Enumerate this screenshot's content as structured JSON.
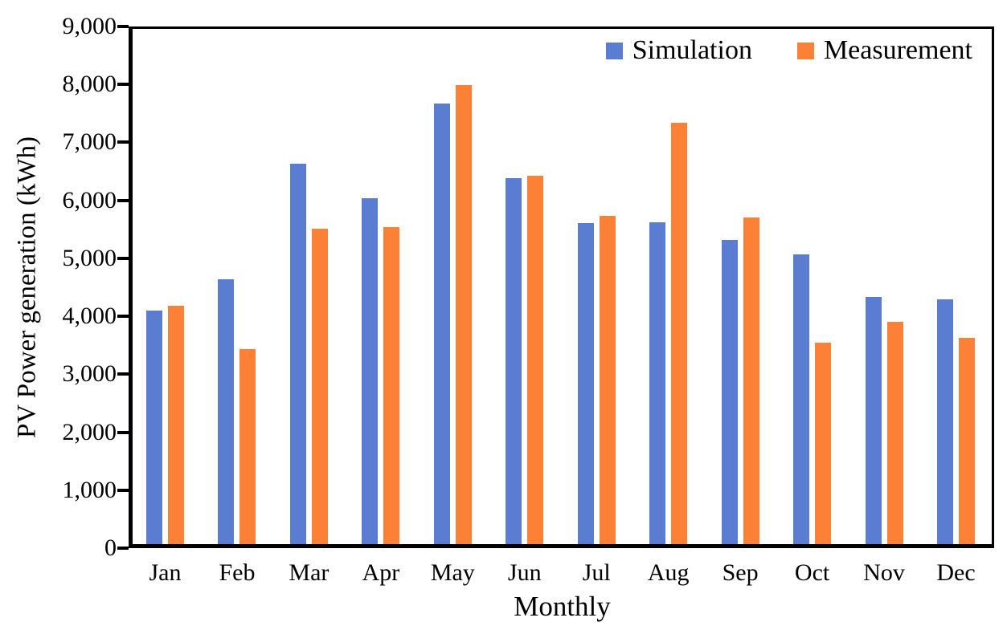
{
  "chart_data": {
    "type": "bar",
    "title": "",
    "xlabel": "Monthly",
    "ylabel": "PV Power generation (kWh)",
    "categories": [
      "Jan",
      "Feb",
      "Mar",
      "Apr",
      "May",
      "Jun",
      "Jul",
      "Aug",
      "Sep",
      "Oct",
      "Nov",
      "Dec"
    ],
    "series": [
      {
        "name": "Simulation",
        "color": "#5a7cd1",
        "values": [
          4080,
          4630,
          6650,
          6040,
          7700,
          6390,
          5610,
          5620,
          5320,
          5060,
          4320,
          4270
        ]
      },
      {
        "name": "Measurement",
        "color": "#fc8137",
        "values": [
          4160,
          3410,
          5510,
          5540,
          8020,
          6440,
          5730,
          7360,
          5700,
          3520,
          3880,
          3600
        ]
      }
    ],
    "ylim": [
      0,
      9000
    ],
    "ytick_step": 1000,
    "ytick_labels": [
      "0",
      "1,000",
      "2,000",
      "3,000",
      "4,000",
      "5,000",
      "6,000",
      "7,000",
      "8,000",
      "9,000"
    ],
    "grid": false,
    "legend_position": "top-right-inside"
  },
  "colors": {
    "axis": "#000000",
    "background": "#ffffff",
    "text": "#000000"
  }
}
